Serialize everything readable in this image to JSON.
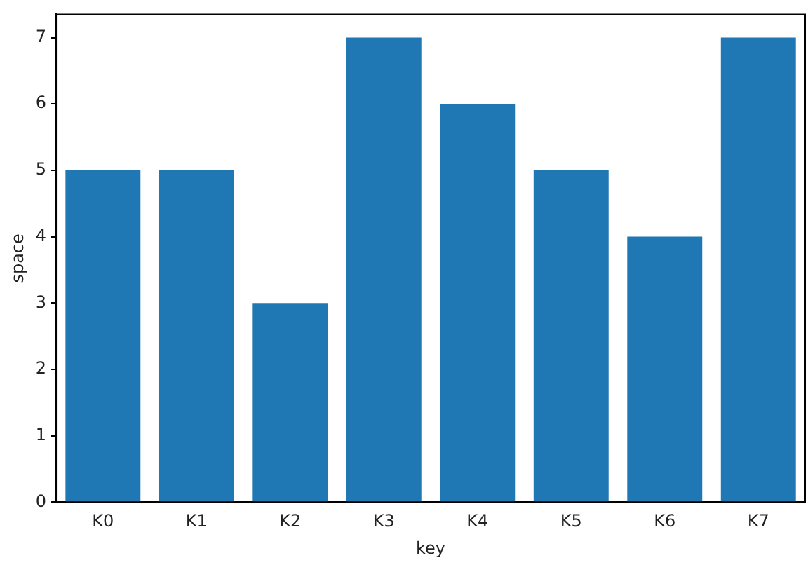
{
  "chart_data": {
    "type": "bar",
    "xlabel": "key",
    "ylabel": "space",
    "categories": [
      "K0",
      "K1",
      "K2",
      "K3",
      "K4",
      "K5",
      "K6",
      "K7"
    ],
    "values": [
      5,
      5,
      3,
      7,
      6,
      5,
      4,
      7
    ],
    "color": "#1f77b4",
    "ylim": [
      0,
      7.35
    ],
    "yticks": [
      0,
      1,
      2,
      3,
      4,
      5,
      6,
      7
    ],
    "grid": false,
    "legend": false
  }
}
